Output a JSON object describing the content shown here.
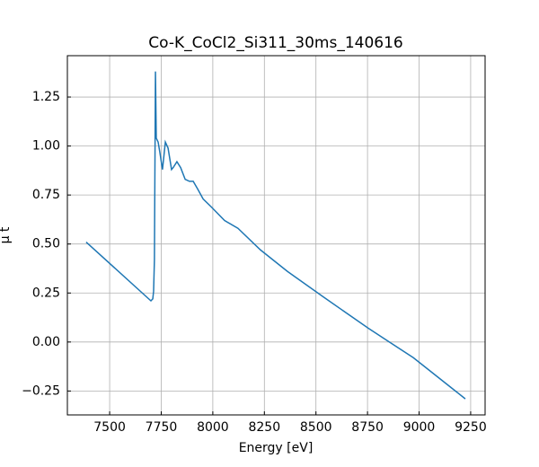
{
  "chart_data": {
    "type": "line",
    "title": "Co-K_CoCl2_Si311_30ms_140616",
    "x_label": "Energy [eV]",
    "y_label": "μ t",
    "x": [
      7386,
      7700,
      7709,
      7713,
      7717,
      7722,
      7726,
      7735,
      7743,
      7756,
      7770,
      7783,
      7800,
      7808,
      7826,
      7844,
      7866,
      7887,
      7905,
      7927,
      7953,
      7992,
      8057,
      8122,
      8231,
      8362,
      8536,
      8754,
      8972,
      9224
    ],
    "series": [
      {
        "color": "#1f77b4",
        "values": [
          0.51,
          0.21,
          0.22,
          0.26,
          0.42,
          1.38,
          1.04,
          1.02,
          0.97,
          0.88,
          1.02,
          0.99,
          0.88,
          0.89,
          0.92,
          0.89,
          0.83,
          0.82,
          0.82,
          0.78,
          0.73,
          0.69,
          0.62,
          0.58,
          0.47,
          0.36,
          0.23,
          0.07,
          -0.08,
          -0.29
        ]
      }
    ],
    "xlim": [
      7295,
      9320
    ],
    "ylim": [
      -0.372,
      1.461
    ],
    "xticks": [
      7500,
      7750,
      8000,
      8250,
      8500,
      8750,
      9000,
      9250
    ],
    "yticks": [
      {
        "value": -0.25,
        "label": "−0.25"
      },
      {
        "value": 0,
        "label": "0.00"
      },
      0.25,
      {
        "value": 0.5,
        "label": "0.50"
      },
      0.75,
      {
        "value": 1,
        "label": "1.00"
      },
      1.25
    ],
    "grid": true
  }
}
